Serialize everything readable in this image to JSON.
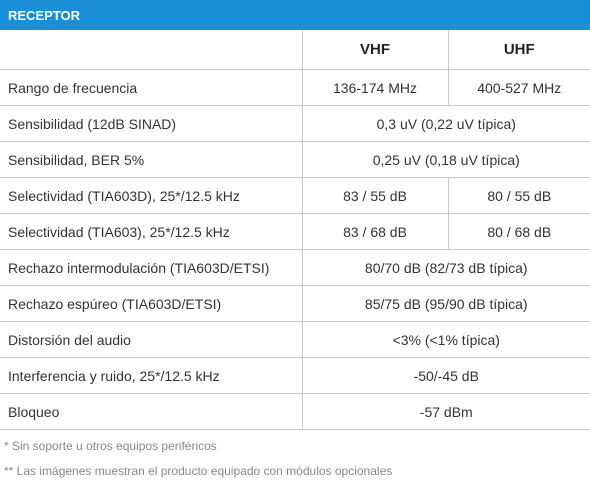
{
  "header": {
    "title": "RECEPTOR"
  },
  "table": {
    "columns": [
      "VHF",
      "UHF"
    ],
    "rows": [
      [
        "Rango de frecuencia",
        "136-174 MHz",
        "400-527 MHz"
      ],
      [
        "Sensibilidad (12dB SINAD)",
        "0,3 uV (0,22 uV típica)"
      ],
      [
        "Sensibilidad, BER 5%",
        "0,25 uV (0,18 uV típica)"
      ],
      [
        "Selectividad (TIA603D), 25*/12.5 kHz",
        "83 / 55 dB",
        "80 / 55 dB"
      ],
      [
        "Selectividad (TIA603), 25*/12.5 kHz",
        "83 / 68 dB",
        "80 / 68 dB"
      ],
      [
        "Rechazo intermodulación (TIA603D/ETSI)",
        "80/70 dB (82/73 dB típica)"
      ],
      [
        "Rechazo espúreo (TIA603D/ETSI)",
        "85/75 dB (95/90 dB típica)"
      ],
      [
        "Distorsión del audio",
        "<3% (<1% típica)"
      ],
      [
        "Interferencia y ruido, 25*/12.5 kHz",
        "-50/-45 dB"
      ],
      [
        "Bloqueo",
        "-57 dBm"
      ]
    ]
  },
  "footnotes": [
    "* Sin soporte u otros equipos periféricos",
    "** Las imágenes muestran el producto equipado con módulos opcionales"
  ]
}
